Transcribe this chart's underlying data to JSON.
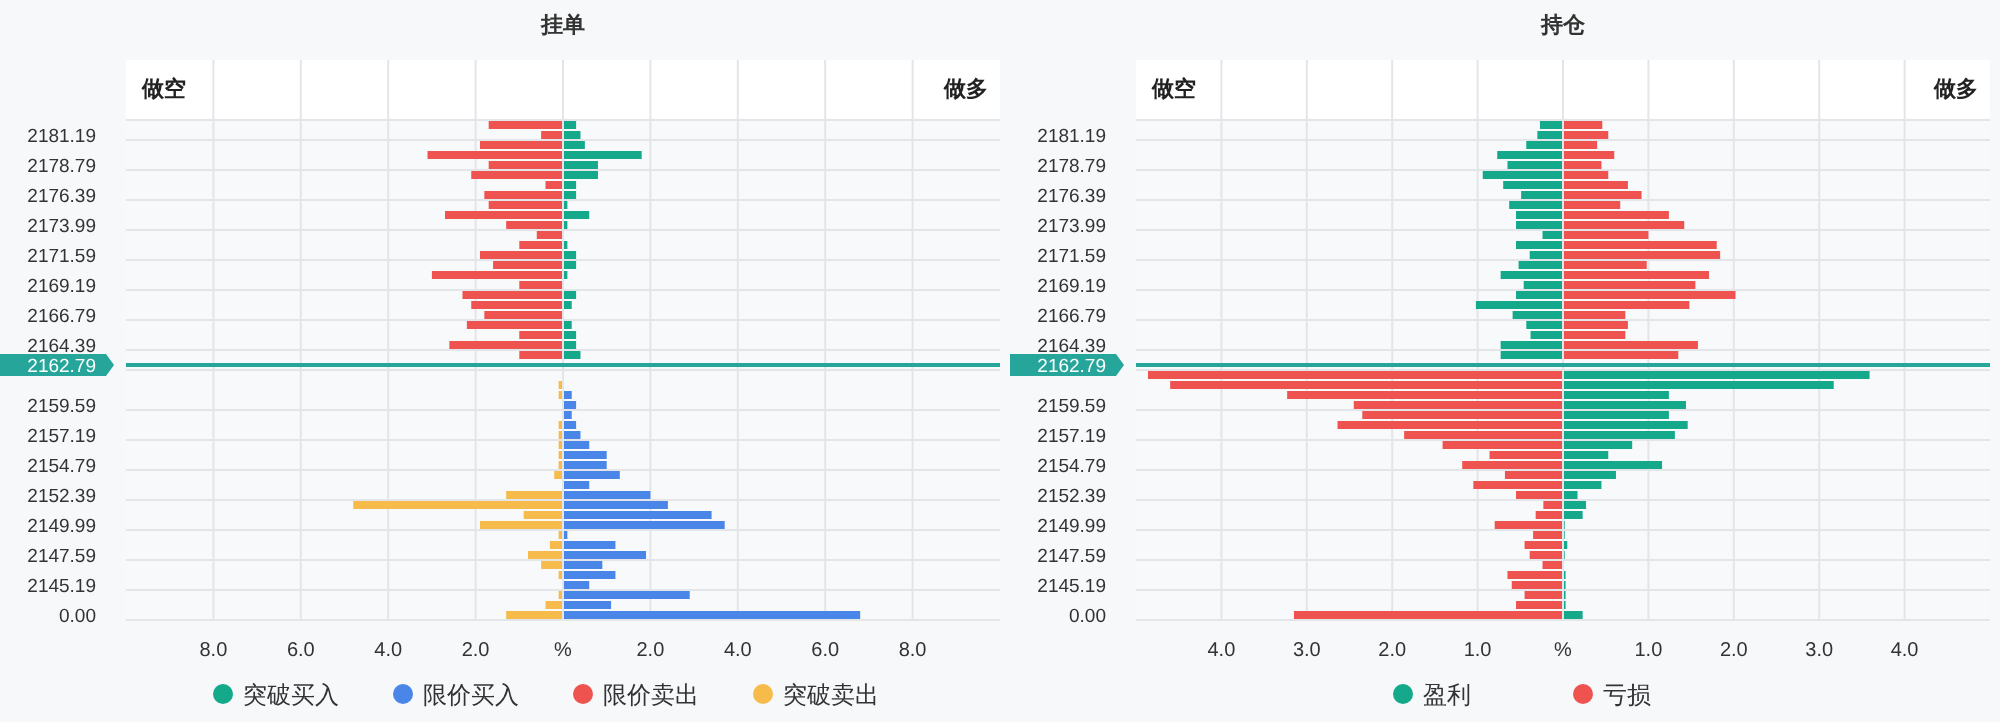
{
  "chart_data": [
    {
      "type": "bar",
      "orientation": "horizontal",
      "stacked": true,
      "title": "挂单",
      "annotations": [
        "做空",
        "做多"
      ],
      "categories": [
        null,
        "2181.19",
        null,
        null,
        "2178.79",
        null,
        null,
        "2176.39",
        null,
        null,
        "2173.99",
        null,
        null,
        "2171.59",
        null,
        null,
        "2169.19",
        null,
        null,
        "2166.79",
        null,
        null,
        "2164.39",
        null,
        "2162.79",
        null,
        null,
        null,
        "2159.59",
        null,
        null,
        "2157.19",
        null,
        null,
        "2154.79",
        null,
        null,
        "2152.39",
        null,
        null,
        "2149.99",
        null,
        null,
        "2147.59",
        null,
        null,
        "2145.19",
        null,
        null,
        "0.00"
      ],
      "xlim": [
        -10,
        10
      ],
      "xticks": [
        {
          "value": -8,
          "label": "8.0"
        },
        {
          "value": -6,
          "label": "6.0"
        },
        {
          "value": -4,
          "label": "4.0"
        },
        {
          "value": -2,
          "label": "2.0"
        },
        {
          "value": 0,
          "label": "%"
        },
        {
          "value": 2,
          "label": "2.0"
        },
        {
          "value": 4,
          "label": "4.0"
        },
        {
          "value": 6,
          "label": "6.0"
        },
        {
          "value": 8,
          "label": "8.0"
        }
      ],
      "grid": true,
      "legend": "bottom",
      "ref_lines": [
        {
          "axis": "y",
          "value": "2162.79",
          "color": "#26a69a"
        }
      ],
      "series": [
        {
          "name": "突破买入",
          "color": "#14a98a",
          "values": [
            0.3,
            0.4,
            0.5,
            1.8,
            0.8,
            0.8,
            0.3,
            0.3,
            0.1,
            0.6,
            0.1,
            null,
            0.1,
            0.3,
            0.3,
            0.1,
            null,
            0.3,
            0.2,
            null,
            0.2,
            0.3,
            0.3,
            0.4,
            null,
            null,
            null,
            null,
            null,
            null,
            null,
            null,
            null,
            null,
            null,
            null,
            null,
            null,
            null,
            null,
            null,
            null,
            null,
            null,
            null,
            null,
            null,
            null,
            null,
            null
          ]
        },
        {
          "name": "限价买入",
          "color": "#4a86e8",
          "values": [
            null,
            null,
            null,
            null,
            null,
            null,
            null,
            null,
            null,
            null,
            null,
            null,
            null,
            null,
            null,
            null,
            null,
            null,
            null,
            null,
            null,
            null,
            null,
            null,
            null,
            null,
            null,
            0.2,
            0.3,
            0.2,
            0.3,
            0.4,
            0.6,
            1.0,
            1.0,
            1.3,
            0.6,
            2.0,
            2.4,
            3.4,
            3.7,
            0.1,
            1.2,
            1.9,
            0.9,
            1.2,
            0.6,
            2.9,
            1.1,
            6.8
          ]
        },
        {
          "name": "限价卖出",
          "color": "#ef5350",
          "values": [
            -1.7,
            -0.5,
            -1.9,
            -3.1,
            -1.7,
            -2.1,
            -0.4,
            -1.8,
            -1.7,
            -2.7,
            -1.3,
            -0.6,
            -1.0,
            -1.9,
            -1.6,
            -3.0,
            -1.0,
            -2.3,
            -2.1,
            -1.8,
            -2.2,
            -1.0,
            -2.6,
            -1.0,
            null,
            null,
            null,
            null,
            null,
            null,
            null,
            null,
            null,
            null,
            null,
            null,
            null,
            null,
            null,
            null,
            null,
            null,
            null,
            null,
            null,
            null,
            null,
            null,
            null,
            null
          ]
        },
        {
          "name": "突破卖出",
          "color": "#f6bb4a",
          "values": [
            null,
            null,
            null,
            null,
            null,
            null,
            null,
            null,
            null,
            null,
            null,
            null,
            null,
            null,
            null,
            null,
            null,
            null,
            null,
            null,
            null,
            null,
            null,
            null,
            null,
            null,
            -0.1,
            -0.1,
            null,
            null,
            -0.1,
            -0.1,
            -0.1,
            -0.1,
            -0.1,
            -0.2,
            null,
            -1.3,
            -4.8,
            -0.9,
            -1.9,
            -0.1,
            -0.3,
            -0.8,
            -0.5,
            -0.1,
            null,
            -0.1,
            -0.4,
            -1.3
          ]
        }
      ]
    },
    {
      "type": "bar",
      "orientation": "horizontal",
      "stacked": true,
      "title": "持仓",
      "annotations": [
        "做空",
        "做多"
      ],
      "categories": [
        null,
        "2181.19",
        null,
        null,
        "2178.79",
        null,
        null,
        "2176.39",
        null,
        null,
        "2173.99",
        null,
        null,
        "2171.59",
        null,
        null,
        "2169.19",
        null,
        null,
        "2166.79",
        null,
        null,
        "2164.39",
        null,
        "2162.79",
        null,
        null,
        null,
        "2159.59",
        null,
        null,
        "2157.19",
        null,
        null,
        "2154.79",
        null,
        null,
        "2152.39",
        null,
        null,
        "2149.99",
        null,
        null,
        "2147.59",
        null,
        null,
        "2145.19",
        null,
        null,
        "0.00"
      ],
      "xlim": [
        -5,
        5
      ],
      "xticks": [
        {
          "value": -4,
          "label": "4.0"
        },
        {
          "value": -3,
          "label": "3.0"
        },
        {
          "value": -2,
          "label": "2.0"
        },
        {
          "value": -1,
          "label": "1.0"
        },
        {
          "value": 0,
          "label": "%"
        },
        {
          "value": 1,
          "label": "1.0"
        },
        {
          "value": 2,
          "label": "2.0"
        },
        {
          "value": 3,
          "label": "3.0"
        },
        {
          "value": 4,
          "label": "4.0"
        }
      ],
      "grid": true,
      "legend": "bottom",
      "ref_lines": [
        {
          "axis": "y",
          "value": "2162.79",
          "color": "#26a69a"
        }
      ],
      "series": [
        {
          "name": "盈利",
          "color": "#14a98a",
          "values": [
            -0.27,
            -0.3,
            -0.43,
            -0.77,
            -0.65,
            -0.94,
            -0.7,
            -0.49,
            -0.63,
            -0.55,
            -0.55,
            -0.24,
            -0.55,
            -0.39,
            -0.52,
            -0.73,
            -0.46,
            -0.55,
            -1.02,
            -0.59,
            -0.43,
            -0.38,
            -0.73,
            -0.73,
            null,
            3.59,
            3.17,
            1.24,
            1.44,
            1.24,
            1.46,
            1.31,
            0.81,
            0.53,
            1.16,
            0.62,
            0.45,
            0.17,
            0.27,
            0.23,
            0.02,
            0.02,
            0.05,
            0.02,
            null,
            0.03,
            0.03,
            0.03,
            0.03,
            0.23
          ]
        },
        {
          "name": "亏损",
          "color": "#ef5350",
          "values": [
            0.46,
            0.53,
            0.4,
            0.6,
            0.45,
            0.53,
            0.76,
            0.92,
            0.67,
            1.24,
            1.42,
            1.0,
            1.8,
            1.84,
            0.98,
            1.71,
            1.55,
            2.02,
            1.48,
            0.73,
            0.76,
            0.73,
            1.58,
            1.35,
            null,
            -4.86,
            -4.6,
            -3.23,
            -2.45,
            -2.35,
            -2.64,
            -1.86,
            -1.41,
            -0.86,
            -1.18,
            -0.68,
            -1.05,
            -0.55,
            -0.23,
            -0.32,
            -0.8,
            -0.35,
            -0.45,
            -0.39,
            -0.24,
            -0.65,
            -0.6,
            -0.45,
            -0.55,
            -3.15
          ]
        }
      ]
    }
  ]
}
